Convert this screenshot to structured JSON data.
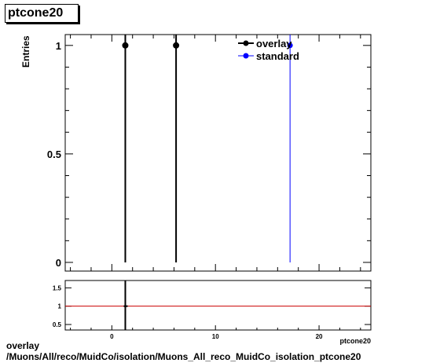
{
  "chart_data": [
    {
      "type": "scatter",
      "title": "ptcone20",
      "ylabel": "Entries",
      "xlim": [
        -4.5,
        25
      ],
      "ylim": [
        -0.04,
        1.05
      ],
      "yticks": [
        0,
        0.5,
        1
      ],
      "ytick_labels": [
        "0",
        "0.5",
        "1"
      ],
      "legend_position": "top-right",
      "series": [
        {
          "name": "overlay",
          "color": "#000000",
          "x": [
            1.3,
            6.2
          ],
          "y": [
            1,
            1
          ]
        },
        {
          "name": "standard",
          "color": "#0000ff",
          "x": [
            17.2
          ],
          "y": [
            1
          ]
        }
      ]
    },
    {
      "type": "line",
      "xlabel": "ptcone20",
      "xlim": [
        -4.5,
        25
      ],
      "ylim": [
        0.35,
        1.7
      ],
      "xticks": [
        0,
        10,
        20
      ],
      "xtick_labels": [
        "0",
        "10",
        "20"
      ],
      "yticks": [
        0.5,
        1,
        1.5
      ],
      "ytick_labels": [
        "0.5",
        "1",
        "1.5"
      ],
      "reference_line": {
        "y": 1,
        "color": "#cc0000"
      },
      "points": [
        {
          "x": 1.3,
          "y": 1
        }
      ]
    }
  ],
  "footer": {
    "line1": "overlay",
    "line2": "/Muons/All/reco/MuidCo/isolation/Muons_All_reco_MuidCo_isolation_ptcone20"
  }
}
